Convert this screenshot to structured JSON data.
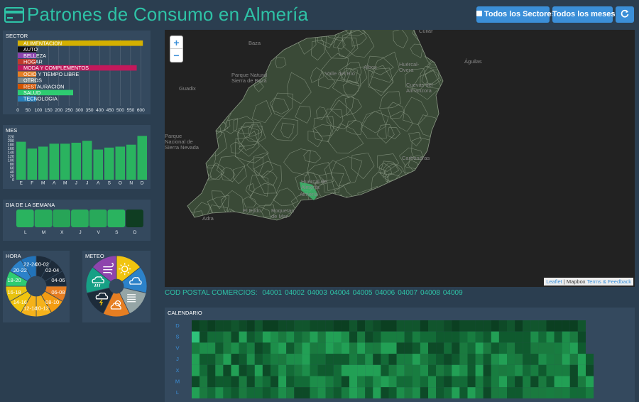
{
  "header": {
    "title": "Patrones de Consumo en Almería",
    "btn_sectores": "Todos los Sectores",
    "btn_meses": "Todos los meses",
    "refresh_icon": "refresh-icon"
  },
  "colors": {
    "accent": "#2ec2a6",
    "button": "#3b8fd8",
    "panel": "#34495e",
    "bar": "#2ab35f"
  },
  "sector_panel": {
    "title": "SECTOR",
    "items": [
      {
        "label": "ALIMENTACION",
        "value": 610,
        "color": "#d4b000"
      },
      {
        "label": "AUTO",
        "value": 0,
        "color": "#0d0d0d"
      },
      {
        "label": "BELLEZA",
        "value": 0,
        "color": "#8d44ad"
      },
      {
        "label": "HOGAR",
        "value": 0,
        "color": "#c0392b"
      },
      {
        "label": "MODA Y COMPLEMENTOS",
        "value": 580,
        "color": "#c2185b"
      },
      {
        "label": "OCIO Y TIEMPO LIBRE",
        "value": 0,
        "color": "#e67e22"
      },
      {
        "label": "OTROS",
        "value": 0,
        "color": "#7f8c8d"
      },
      {
        "label": "RESTAURACION",
        "value": 0,
        "color": "#d35400"
      },
      {
        "label": "SALUD",
        "value": 270,
        "color": "#2ecc71"
      },
      {
        "label": "TECNOLOGIA",
        "value": 0,
        "color": "#2980b9"
      }
    ],
    "ticks": [
      "0",
      "50",
      "100",
      "150",
      "200",
      "250",
      "300",
      "350",
      "400",
      "450",
      "500",
      "550",
      "600"
    ]
  },
  "month_panel": {
    "title": "MES",
    "yticks": [
      "220",
      "200",
      "180",
      "160",
      "140",
      "120",
      "100",
      "80",
      "60",
      "40",
      "20",
      "0"
    ],
    "chart_data": {
      "type": "bar",
      "categories": [
        "E",
        "F",
        "M",
        "A",
        "M",
        "J",
        "J",
        "A",
        "S",
        "O",
        "N",
        "D"
      ],
      "values": [
        195,
        160,
        170,
        185,
        185,
        190,
        200,
        155,
        165,
        170,
        180,
        225
      ],
      "ylim": [
        0,
        230
      ]
    }
  },
  "day_panel": {
    "title": "DIA DE LA SEMANA",
    "days": [
      {
        "label": "L",
        "color": "#2ab35f"
      },
      {
        "label": "M",
        "color": "#28ab5b"
      },
      {
        "label": "X",
        "color": "#27a457"
      },
      {
        "label": "J",
        "color": "#29ad5c"
      },
      {
        "label": "V",
        "color": "#28a95a"
      },
      {
        "label": "S",
        "color": "#2ab35f"
      },
      {
        "label": "D",
        "color": "#0f3d22"
      }
    ]
  },
  "hour_panel": {
    "title": "HORA",
    "segments": [
      {
        "label": "00-02",
        "color": "#1d2b3a"
      },
      {
        "label": "02-04",
        "color": "#1d2b3a"
      },
      {
        "label": "04-06",
        "color": "#1d2b3a"
      },
      {
        "label": "06-08",
        "color": "#e67e22"
      },
      {
        "label": "08-10",
        "color": "#f39c12"
      },
      {
        "label": "10-12",
        "color": "#f5b21b"
      },
      {
        "label": "12-14",
        "color": "#f5b21b"
      },
      {
        "label": "14-16",
        "color": "#f1c40f"
      },
      {
        "label": "16-18",
        "color": "#e8c20f"
      },
      {
        "label": "18-20",
        "color": "#2ecc71"
      },
      {
        "label": "20-22",
        "color": "#2c82c9"
      },
      {
        "label": "22-24",
        "color": "#2273b9"
      }
    ]
  },
  "weather_panel": {
    "title": "METEO",
    "segments": [
      {
        "icon": "sun-icon",
        "color": "#f1c40f"
      },
      {
        "icon": "cloud-icon",
        "color": "#2c82c9"
      },
      {
        "icon": "fog-icon",
        "color": "#95a5a6"
      },
      {
        "icon": "partly-cloudy-icon",
        "color": "#e67e22"
      },
      {
        "icon": "thunderstorm-icon",
        "color": "#1d2b3a"
      },
      {
        "icon": "rain-icon",
        "color": "#16a085"
      },
      {
        "icon": "wind-icon",
        "color": "#8e44ad"
      }
    ]
  },
  "map": {
    "zoom_in": "+",
    "zoom_out": "−",
    "attribution_leaflet": "Leaflet",
    "attribution_mid": " | Mapbox ",
    "attribution_terms": "Terms & Feedback",
    "places": [
      {
        "name": "Baza"
      },
      {
        "name": "Parque Natural\nSierra de Baza"
      },
      {
        "name": "Guadix"
      },
      {
        "name": "Parque\nNacional de\nSierra Nevada"
      },
      {
        "name": "Cúllar"
      },
      {
        "name": "Albox"
      },
      {
        "name": "Huércal-\nOvera"
      },
      {
        "name": "Cuevas del\nAlmanzora"
      },
      {
        "name": "Águilas"
      },
      {
        "name": "Carboneras"
      },
      {
        "name": "Huércal de\nAlmería"
      },
      {
        "name": "Almería"
      },
      {
        "name": "El Ejido"
      },
      {
        "name": "Roquetas\nde Mar"
      },
      {
        "name": "Adra"
      },
      {
        "name": "Lorca"
      },
      {
        "name": "Valle del Río"
      }
    ]
  },
  "postal": {
    "label": "COD POSTAL COMERCIOS:",
    "codes": [
      "04001",
      "04002",
      "04003",
      "04004",
      "04005",
      "04006",
      "04007",
      "04008",
      "04009"
    ]
  },
  "calendar": {
    "title": "CALENDARIO",
    "rows": [
      "D",
      "S",
      "V",
      "J",
      "X",
      "M",
      "L"
    ]
  }
}
